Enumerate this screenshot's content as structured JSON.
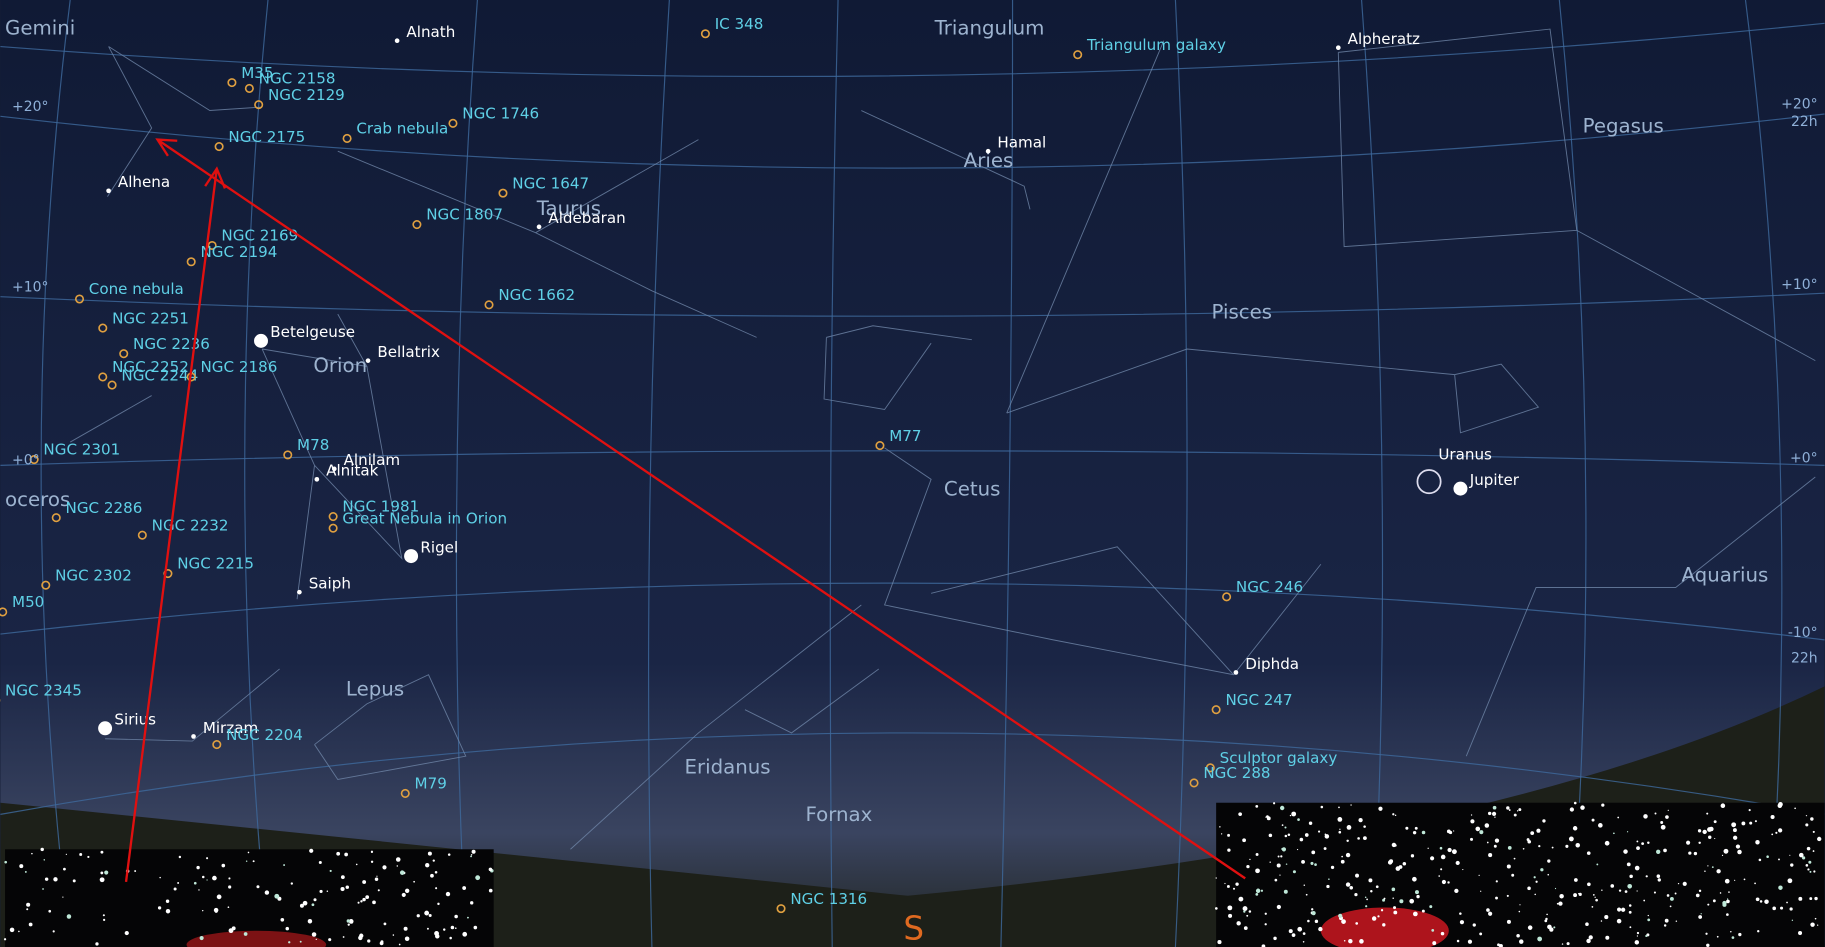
{
  "constellations": [
    "Gemini",
    "Triangulum",
    "Pegasus",
    "Aries",
    "Taurus",
    "Orion",
    "Pisces",
    "Cetus",
    "oceros",
    "Lepus",
    "Eridanus",
    "Fornax",
    "Aquarius"
  ],
  "stars": [
    "Alnath",
    "Alpheratz",
    "Hamal",
    "Aldebaran",
    "Alhena",
    "Betelgeuse",
    "Bellatrix",
    "Alnilam",
    "Alnitak",
    "Rigel",
    "Saiph",
    "Sirius",
    "Mirzam",
    "Diphda",
    "Uranus",
    "Jupiter"
  ],
  "deep_sky_objects": [
    "IC 348",
    "Triangulum galaxy",
    "M35",
    "NGC 2158",
    "NGC 2129",
    "NGC 1746",
    "Crab nebula",
    "NGC 2175",
    "NGC 1647",
    "NGC 1807",
    "NGC 2169",
    "NGC 2194",
    "Cone nebula",
    "NGC 1662",
    "NGC 2251",
    "NGC 2236",
    "NGC 2252",
    "NGC 2244",
    "NGC 2186",
    "M78",
    "NGC 2301",
    "NGC 2286",
    "NGC 1981",
    "Great Nebula in Orion",
    "NGC 2232",
    "NGC 2215",
    "NGC 2302",
    "M50",
    "NGC 246",
    "M77",
    "NGC 247",
    "NGC 2345",
    "NGC 2204",
    "Sculptor galaxy",
    "NGC 288",
    "M79",
    "NGC 1316"
  ],
  "grid_labels": [
    "+20°",
    "+10°",
    "+0°",
    "+20°",
    "22h",
    "+10°",
    "+0°",
    "-10°",
    "22h"
  ],
  "compass": "S"
}
